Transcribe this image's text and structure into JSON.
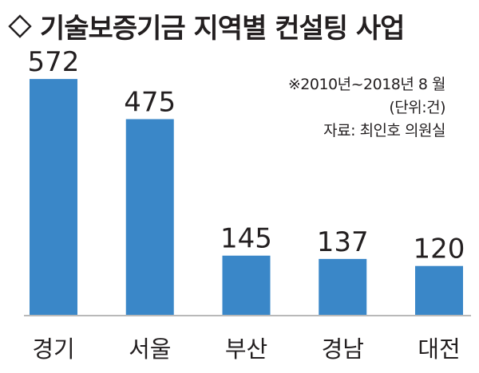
{
  "title": "기술보증기금 지역별 컨설팅 사업",
  "icon": "diamond-outline-icon",
  "notes": {
    "period": "※2010년~2018년 8 월",
    "unit": "(단위:건)",
    "source": "자료: 최인호 의원실"
  },
  "colors": {
    "bar": "#3a87c8",
    "text": "#231f20",
    "baseline": "#b9b9b9"
  },
  "chart_data": {
    "type": "bar",
    "title": "기술보증기금 지역별 컨설팅 사업",
    "categories": [
      "경기",
      "서울",
      "부산",
      "경남",
      "대전"
    ],
    "values": [
      572,
      475,
      145,
      137,
      120
    ],
    "xlabel": "",
    "ylabel": "",
    "ylim": [
      0,
      600
    ],
    "grid": false,
    "legend": "none"
  }
}
